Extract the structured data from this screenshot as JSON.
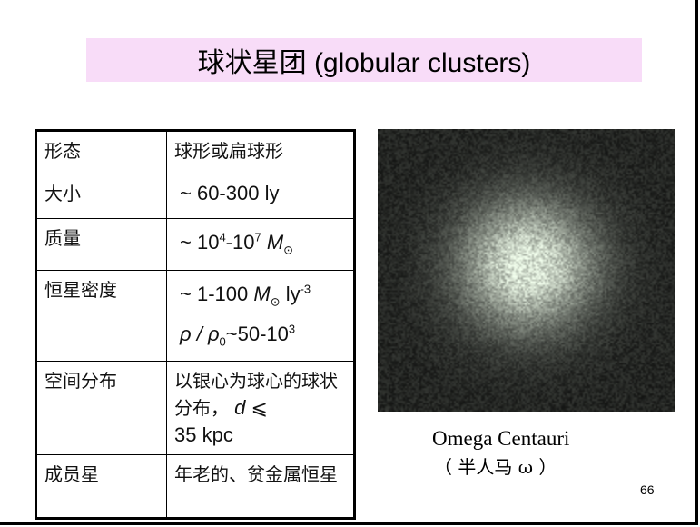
{
  "title": "球状星团 (globular clusters)",
  "table": {
    "rows": [
      {
        "key": "形态",
        "value": "球形或扁球形"
      },
      {
        "key": "大小",
        "value": "~ 60-300 ly"
      },
      {
        "key": "质量",
        "value_parts": {
          "a": "~ 10",
          "exp1": "4",
          "b": "-10",
          "exp2": "7",
          "m": "M",
          "sun": "⊙"
        }
      },
      {
        "key": "恒星密度",
        "value_parts": {
          "a": "~ 1-100 ",
          "m": "M",
          "sun": "⊙",
          "b": " ly",
          "exp": "-3",
          "rho": "ρ / ρ",
          "sub0": "0",
          "c": "~50-10",
          "exp3": "3"
        }
      },
      {
        "key": "空间分布",
        "value_parts": {
          "a": "以银心为球心的球状分布，",
          "d": "d",
          "le": " ⩽",
          "b": "35 kpc"
        }
      },
      {
        "key": "成员星",
        "value": "年老的、贫金属恒星"
      }
    ]
  },
  "image": {
    "subject": "globular cluster photo"
  },
  "caption": {
    "line1": "Omega Centauri",
    "line2": "（ 半人马 ω ）"
  },
  "page_number": "66"
}
